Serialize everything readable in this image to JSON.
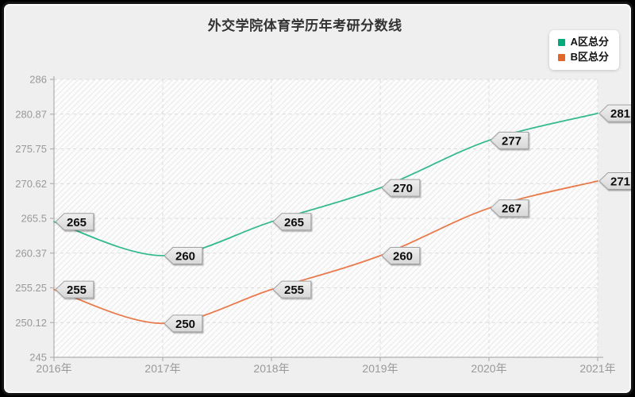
{
  "title": "外交学院体育学历年考研分数线",
  "chart_data": {
    "type": "line",
    "title": "外交学院体育学历年考研分数线",
    "xlabel": "",
    "ylabel": "",
    "categories": [
      "2016年",
      "2017年",
      "2018年",
      "2019年",
      "2020年",
      "2021年"
    ],
    "series": [
      {
        "name": "A区总分",
        "swatch_color": "#00a97c",
        "line_color": "#35b990",
        "values": [
          265,
          260,
          265,
          270,
          277,
          281
        ]
      },
      {
        "name": "B区总分",
        "swatch_color": "#e2662a",
        "line_color": "#e87a4c",
        "values": [
          255,
          250,
          255,
          260,
          267,
          271
        ]
      }
    ],
    "y_axis": {
      "min": 245,
      "max": 286,
      "tick_values": [
        286,
        280.875,
        275.75,
        270.625,
        265.5,
        260.375,
        255.25,
        250.125,
        245
      ],
      "tick_labels": [
        "286",
        "280.87",
        "275.75",
        "270.62",
        "265.5",
        "260.37",
        "255.25",
        "250.12",
        "245"
      ]
    },
    "legend_position": "top-right",
    "grid": true,
    "smooth": true,
    "point_labels": true
  },
  "colors": {
    "frame": "#141414",
    "card_bg": "#efefef",
    "plot_bg": "#fcfcfc",
    "hatch": "#e9e9e9",
    "grid": "#dcdcdc",
    "axis": "#b0b0b0",
    "tick_text": "#999999",
    "title_text": "#333333",
    "badge_fill_top": "#f0f0f0",
    "badge_fill_bottom": "#d7d7d7",
    "badge_border": "#a0a0a0",
    "badge_text": "#111111"
  }
}
